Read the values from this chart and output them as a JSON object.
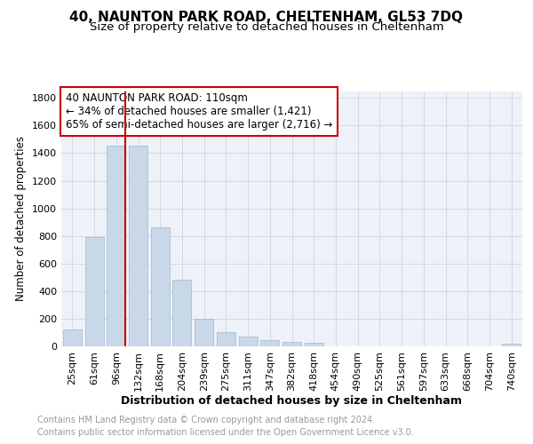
{
  "title": "40, NAUNTON PARK ROAD, CHELTENHAM, GL53 7DQ",
  "subtitle": "Size of property relative to detached houses in Cheltenham",
  "xlabel": "Distribution of detached houses by size in Cheltenham",
  "ylabel": "Number of detached properties",
  "categories": [
    "25sqm",
    "61sqm",
    "96sqm",
    "132sqm",
    "168sqm",
    "204sqm",
    "239sqm",
    "275sqm",
    "311sqm",
    "347sqm",
    "382sqm",
    "418sqm",
    "454sqm",
    "490sqm",
    "525sqm",
    "561sqm",
    "597sqm",
    "633sqm",
    "668sqm",
    "704sqm",
    "740sqm"
  ],
  "values": [
    120,
    790,
    1455,
    1455,
    860,
    480,
    200,
    100,
    68,
    47,
    32,
    25,
    0,
    0,
    0,
    0,
    0,
    0,
    0,
    0,
    20
  ],
  "bar_color": "#c8d8e8",
  "bar_edgecolor": "#a0b8cc",
  "vline_x_index": 2,
  "vline_color": "#cc0000",
  "annotation_text": "40 NAUNTON PARK ROAD: 110sqm\n← 34% of detached houses are smaller (1,421)\n65% of semi-detached houses are larger (2,716) →",
  "annotation_box_color": "#ffffff",
  "annotation_box_edgecolor": "#cc0000",
  "ylim": [
    0,
    1850
  ],
  "yticks": [
    0,
    200,
    400,
    600,
    800,
    1000,
    1200,
    1400,
    1600,
    1800
  ],
  "grid_color": "#d0d8e8",
  "background_color": "#eef2f8",
  "footer_line1": "Contains HM Land Registry data © Crown copyright and database right 2024.",
  "footer_line2": "Contains public sector information licensed under the Open Government Licence v3.0.",
  "title_fontsize": 11,
  "subtitle_fontsize": 9.5,
  "xlabel_fontsize": 9,
  "ylabel_fontsize": 8.5,
  "tick_fontsize": 8,
  "annotation_fontsize": 8.5,
  "footer_fontsize": 7
}
